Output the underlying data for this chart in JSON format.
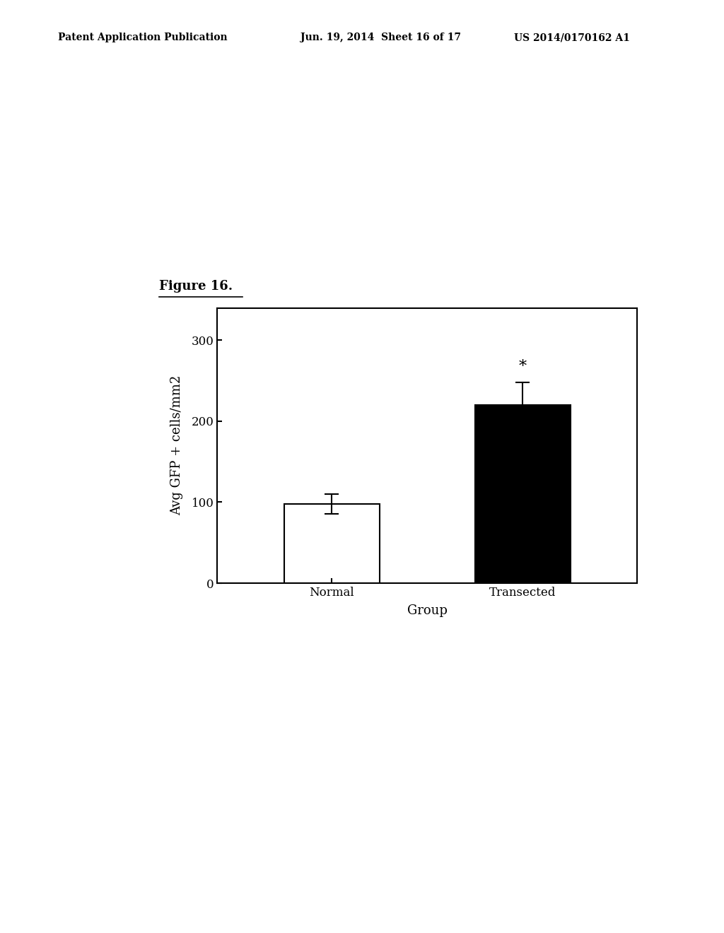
{
  "categories": [
    "Normal",
    "Transected"
  ],
  "values": [
    98,
    220
  ],
  "errors": [
    12,
    28
  ],
  "bar_colors": [
    "#ffffff",
    "#000000"
  ],
  "bar_edgecolors": [
    "#000000",
    "#000000"
  ],
  "ylabel": "Avg GFP + cells/mm2",
  "xlabel": "Group",
  "ylim": [
    0,
    340
  ],
  "yticks": [
    0,
    100,
    200,
    300
  ],
  "figure_caption": "Figure 16.",
  "header_left": "Patent Application Publication",
  "header_center": "Jun. 19, 2014  Sheet 16 of 17",
  "header_right": "US 2014/0170162 A1",
  "significance_label": "*",
  "bar_width": 0.5,
  "background_color": "#ffffff",
  "axis_fontsize": 13,
  "tick_fontsize": 12,
  "header_fontsize": 10,
  "caption_fontsize": 13
}
